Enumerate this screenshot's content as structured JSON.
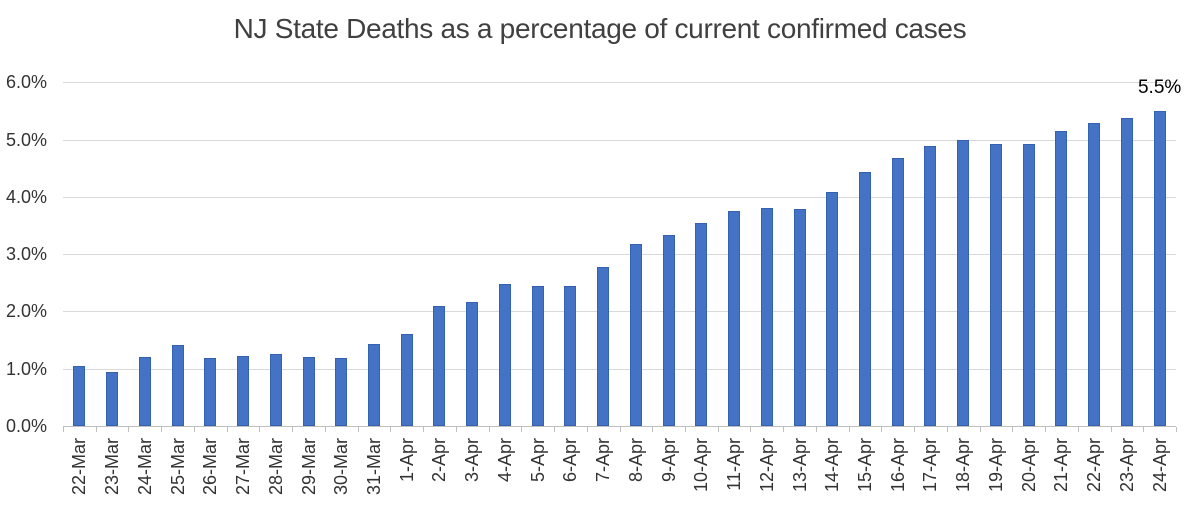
{
  "chart_data": {
    "type": "bar",
    "title": "NJ State Deaths as a percentage of current confirmed cases",
    "xlabel": "",
    "ylabel": "",
    "ylim": [
      0,
      6
    ],
    "ytick_labels": [
      "0.0%",
      "1.0%",
      "2.0%",
      "3.0%",
      "4.0%",
      "5.0%",
      "6.0%"
    ],
    "grid": true,
    "legend": "none",
    "bar_color": "#4472C4",
    "bar_edge_color": "#3462B1",
    "gridline_color": "#D9D9D9",
    "axis_line_color": "#BFBFBF",
    "text_color": "#333333",
    "title_color": "#404040",
    "categories": [
      "22-Mar",
      "23-Mar",
      "24-Mar",
      "25-Mar",
      "26-Mar",
      "27-Mar",
      "28-Mar",
      "29-Mar",
      "30-Mar",
      "31-Mar",
      "1-Apr",
      "2-Apr",
      "3-Apr",
      "4-Apr",
      "5-Apr",
      "6-Apr",
      "7-Apr",
      "8-Apr",
      "9-Apr",
      "10-Apr",
      "11-Apr",
      "12-Apr",
      "13-Apr",
      "14-Apr",
      "15-Apr",
      "16-Apr",
      "17-Apr",
      "18-Apr",
      "19-Apr",
      "20-Apr",
      "21-Apr",
      "22-Apr",
      "23-Apr",
      "24-Apr"
    ],
    "values": [
      1.04,
      0.95,
      1.2,
      1.41,
      1.18,
      1.22,
      1.26,
      1.2,
      1.19,
      1.43,
      1.6,
      2.1,
      2.16,
      2.48,
      2.44,
      2.44,
      2.77,
      3.17,
      3.33,
      3.54,
      3.75,
      3.8,
      3.78,
      4.08,
      4.44,
      4.67,
      4.89,
      5.0,
      4.93,
      4.93,
      5.14,
      5.28,
      5.37,
      5.5
    ],
    "annotation": {
      "text": "5.5%",
      "category": "24-Apr",
      "color": "#000000"
    }
  }
}
